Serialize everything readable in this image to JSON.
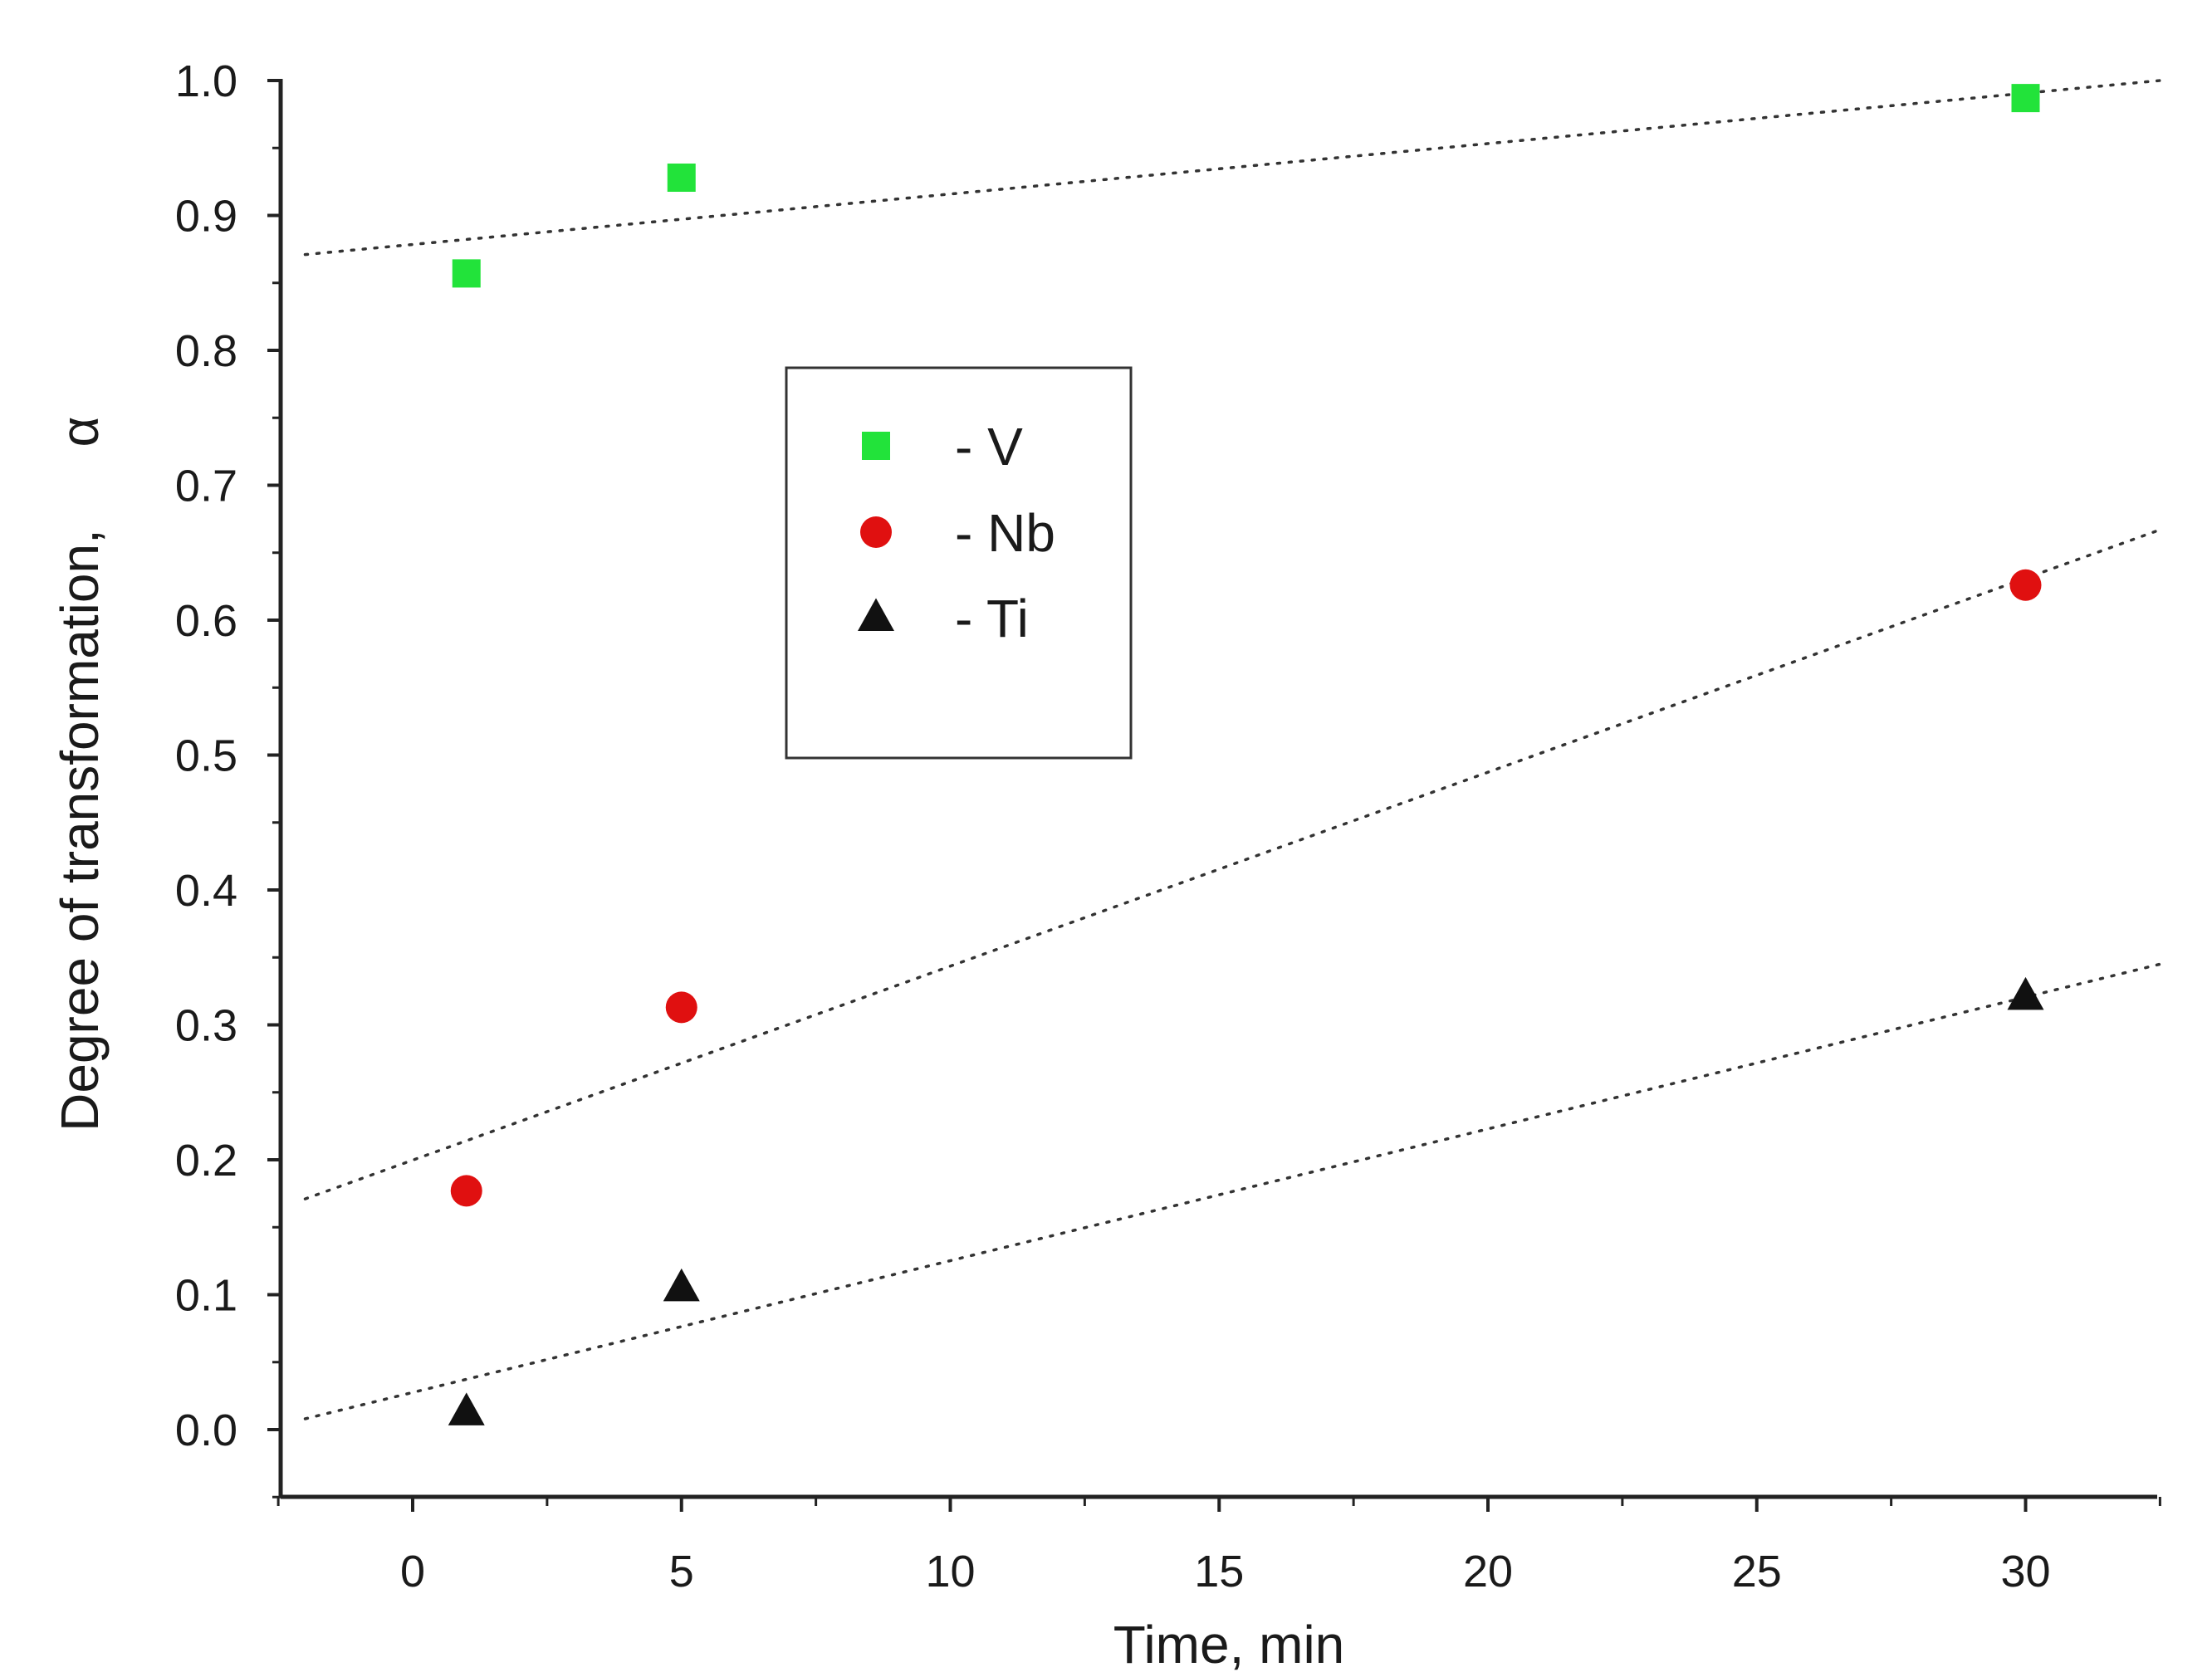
{
  "chart_data": {
    "type": "scatter",
    "title": "",
    "xlabel": "Time, min",
    "ylabel": "Degree of transformation,",
    "ylabel_symbol": "α",
    "xlim": [
      -2.5,
      32.5
    ],
    "ylim": [
      -0.05,
      1.0
    ],
    "x_ticks": [
      0,
      5,
      10,
      15,
      20,
      25,
      30
    ],
    "x_tick_labels": [
      "0",
      "5",
      "10",
      "15",
      "20",
      "25",
      "30"
    ],
    "y_ticks": [
      0.0,
      0.1,
      0.2,
      0.3,
      0.4,
      0.5,
      0.6,
      0.7,
      0.8,
      0.9,
      1.0
    ],
    "y_tick_labels": [
      "0.0",
      "0.1",
      "0.2",
      "0.3",
      "0.4",
      "0.5",
      "0.6",
      "0.7",
      "0.8",
      "0.9",
      "1.0"
    ],
    "grid": false,
    "legend_position": "upper-center",
    "series": [
      {
        "name": "V",
        "legend_label": "- V",
        "marker": "square",
        "color": "#22e33a",
        "x": [
          1,
          5,
          30
        ],
        "y": [
          0.857,
          0.928,
          0.987
        ],
        "trendline": {
          "x": [
            -2,
            32.5
          ],
          "y": [
            0.871,
            1.0
          ]
        }
      },
      {
        "name": "Nb",
        "legend_label": "- Nb",
        "marker": "circle",
        "color": "#e01010",
        "x": [
          1,
          5,
          30
        ],
        "y": [
          0.177,
          0.313,
          0.626
        ],
        "trendline": {
          "x": [
            -2,
            32.5
          ],
          "y": [
            0.171,
            0.667
          ]
        }
      },
      {
        "name": "Ti",
        "legend_label": "- Ti",
        "marker": "triangle",
        "color": "#111111",
        "x": [
          1,
          5,
          30
        ],
        "y": [
          0.013,
          0.105,
          0.321
        ],
        "trendline": {
          "x": [
            -2,
            32.5
          ],
          "y": [
            0.008,
            0.345
          ]
        }
      }
    ]
  }
}
